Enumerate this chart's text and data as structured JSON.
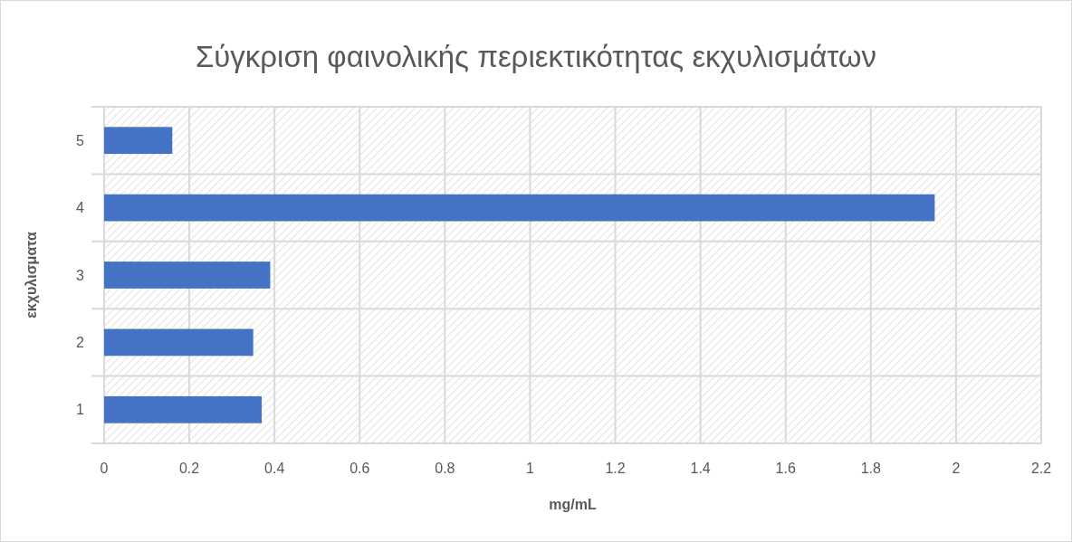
{
  "chart_data": {
    "type": "bar",
    "orientation": "horizontal",
    "title": "Σύγκριση φαινολικής περιεκτικότητας εκχυλισμάτων",
    "xlabel": "mg/mL",
    "ylabel": "εκχυλισματα",
    "categories": [
      "5",
      "4",
      "3",
      "2",
      "1"
    ],
    "values": [
      0.16,
      1.95,
      0.39,
      0.35,
      0.37
    ],
    "color": "#4472c4",
    "xlim": [
      0,
      2.2
    ],
    "xticks": [
      0,
      0.2,
      0.4,
      0.6,
      0.8,
      1,
      1.2,
      1.4,
      1.6,
      1.8,
      2,
      2.2
    ],
    "grid": true
  }
}
